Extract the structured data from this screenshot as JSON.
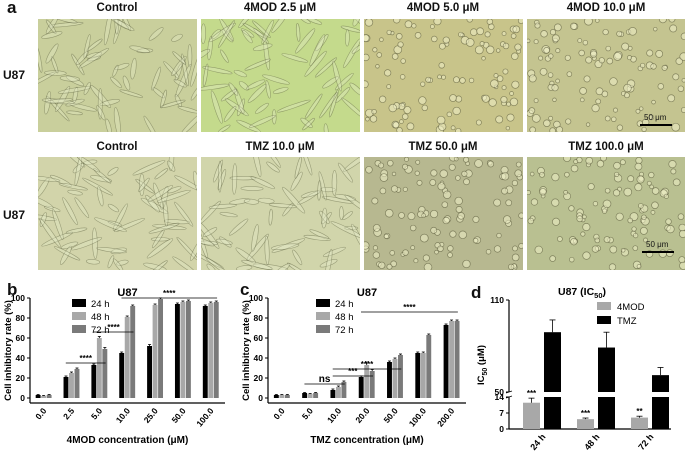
{
  "panels": {
    "a": "a",
    "b": "b",
    "c": "c",
    "d": "d"
  },
  "micrographs": {
    "row1": {
      "label": "U87",
      "titles": [
        "Control",
        "4MOD 2.5 μM",
        "4MOD 5.0 μM",
        "4MOD 10.0 μM"
      ],
      "scale_bar": "50 μm",
      "bg_colors": [
        "#c9cf9c",
        "#c4da8c",
        "#c8c48a",
        "#c4c490"
      ]
    },
    "row2": {
      "label": "U87",
      "titles": [
        "Control",
        "TMZ 10.0 μM",
        "TMZ 50.0 μM",
        "TMZ 100.0 μM"
      ],
      "scale_bar": "50 μm",
      "bg_colors": [
        "#d2d4aa",
        "#d1d5ab",
        "#b7b890",
        "#b9c091"
      ]
    }
  },
  "chart_data": [
    {
      "type": "bar",
      "panel": "b",
      "title": "U87",
      "xlabel": "4MOD concentration (μM)",
      "ylabel": "Cell inhibitory rate (%)",
      "ylim": [
        -5,
        100
      ],
      "yticks": [
        "0",
        "20",
        "40",
        "60",
        "80",
        "100"
      ],
      "categories": [
        "0.0",
        "2.5",
        "5.0",
        "10.0",
        "25.0",
        "50.0",
        "100.0"
      ],
      "series": [
        {
          "name": "24 h",
          "color": "#000000",
          "values": [
            3,
            21,
            33,
            45,
            52,
            94,
            92
          ]
        },
        {
          "name": "48 h",
          "color": "#a8a8a8",
          "values": [
            2,
            25,
            60,
            81,
            93,
            96,
            95
          ]
        },
        {
          "name": "72 h",
          "color": "#7a7a7a",
          "values": [
            3,
            29,
            49,
            92,
            99,
            97,
            96
          ]
        }
      ],
      "errors": [
        [
          0.5,
          1,
          1,
          1,
          1.5,
          1,
          1
        ],
        [
          0.5,
          1,
          1.5,
          1,
          1,
          1,
          1
        ],
        [
          0.5,
          1,
          1.5,
          1,
          1,
          1,
          1
        ]
      ],
      "significance": [
        "****",
        "****",
        "****"
      ]
    },
    {
      "type": "bar",
      "panel": "c",
      "title": "U87",
      "xlabel": "TMZ concentration (μM)",
      "ylabel": "Cell inhibitory rate (%)",
      "ylim": [
        -5,
        100
      ],
      "yticks": [
        "0",
        "20",
        "40",
        "60",
        "80",
        "100"
      ],
      "categories": [
        "0.0",
        "5.0",
        "10.0",
        "20.0",
        "50.0",
        "100.0",
        "200.0"
      ],
      "series": [
        {
          "name": "24 h",
          "color": "#000000",
          "values": [
            3,
            5,
            8,
            21,
            36,
            45,
            73
          ]
        },
        {
          "name": "48 h",
          "color": "#a8a8a8",
          "values": [
            3,
            4,
            11,
            33,
            39,
            45,
            77
          ]
        },
        {
          "name": "72 h",
          "color": "#7a7a7a",
          "values": [
            3,
            5,
            16,
            27,
            43,
            63,
            77
          ]
        }
      ],
      "errors": [
        [
          0.5,
          0.5,
          1,
          1,
          1,
          1,
          1
        ],
        [
          0.5,
          0.5,
          1,
          3,
          1,
          1,
          1
        ],
        [
          0.5,
          0.5,
          1,
          1.5,
          1,
          1,
          1
        ]
      ],
      "significance": [
        "ns",
        "***",
        "****",
        "****"
      ]
    },
    {
      "type": "bar",
      "panel": "d",
      "title": "U87 (IC",
      "title_sub": "50",
      "title_end": ")",
      "ylabel": "IC",
      "ylabel_sub": "50",
      "ylabel_end": " (μM)",
      "yticks_lower": [
        "0",
        "7",
        "14"
      ],
      "yticks_upper": [
        "50",
        "110"
      ],
      "categories": [
        "24 h",
        "48 h",
        "72 h"
      ],
      "series": [
        {
          "name": "4MOD",
          "color": "#a8a8a8",
          "values": [
            11.5,
            4.3,
            5.0
          ]
        },
        {
          "name": "TMZ",
          "color": "#000000",
          "values": [
            89,
            79,
            61
          ]
        }
      ],
      "errors": [
        [
          2,
          0.5,
          0.6
        ],
        [
          8,
          10,
          5
        ]
      ],
      "significance": [
        "***",
        "***",
        "**"
      ]
    }
  ]
}
